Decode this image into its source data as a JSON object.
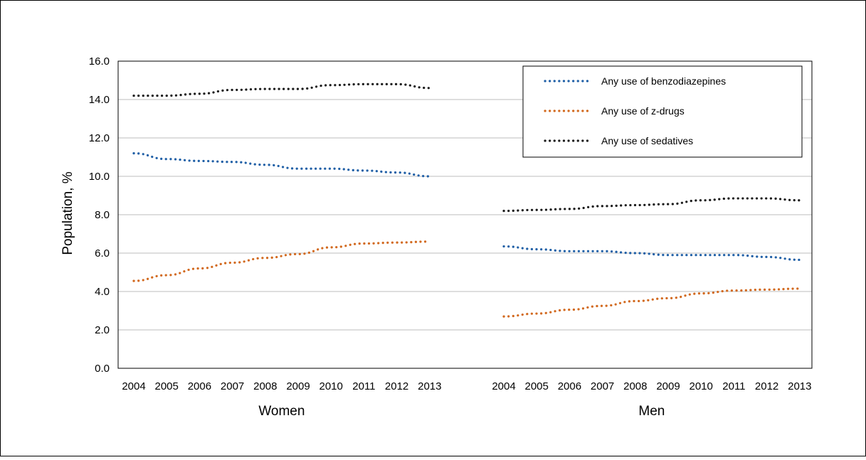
{
  "chart_data": {
    "type": "line",
    "ylabel": "Population, %",
    "ylim": [
      0,
      16
    ],
    "yticks": [
      "0.0",
      "2.0",
      "4.0",
      "6.0",
      "8.0",
      "10.0",
      "12.0",
      "14.0",
      "16.0"
    ],
    "grid": true,
    "legend_position": "top-right",
    "groups": [
      {
        "label": "Women",
        "x": [
          "2004",
          "2005",
          "2006",
          "2007",
          "2008",
          "2009",
          "2010",
          "2011",
          "2012",
          "2013"
        ],
        "series": [
          {
            "name": "Any use of benzodiazepines",
            "values": [
              11.2,
              10.9,
              10.8,
              10.75,
              10.6,
              10.4,
              10.4,
              10.3,
              10.2,
              10.0
            ]
          },
          {
            "name": "Any use of z-drugs",
            "values": [
              4.55,
              4.85,
              5.2,
              5.5,
              5.75,
              5.95,
              6.3,
              6.5,
              6.55,
              6.6
            ]
          },
          {
            "name": "Any use of sedatives",
            "values": [
              14.2,
              14.2,
              14.3,
              14.5,
              14.55,
              14.55,
              14.75,
              14.8,
              14.8,
              14.6
            ]
          }
        ]
      },
      {
        "label": "Men",
        "x": [
          "2004",
          "2005",
          "2006",
          "2007",
          "2008",
          "2009",
          "2010",
          "2011",
          "2012",
          "2013"
        ],
        "series": [
          {
            "name": "Any use of benzodiazepines",
            "values": [
              6.35,
              6.2,
              6.1,
              6.1,
              6.0,
              5.9,
              5.9,
              5.9,
              5.8,
              5.65
            ]
          },
          {
            "name": "Any use of z-drugs",
            "values": [
              2.7,
              2.85,
              3.05,
              3.25,
              3.5,
              3.65,
              3.9,
              4.05,
              4.1,
              4.15
            ]
          },
          {
            "name": "Any use of sedatives",
            "values": [
              8.2,
              8.25,
              8.3,
              8.45,
              8.5,
              8.55,
              8.75,
              8.85,
              8.85,
              8.75
            ]
          }
        ]
      }
    ],
    "colors": [
      "#1f5fa6",
      "#d2691e",
      "#1a1a1a"
    ]
  }
}
